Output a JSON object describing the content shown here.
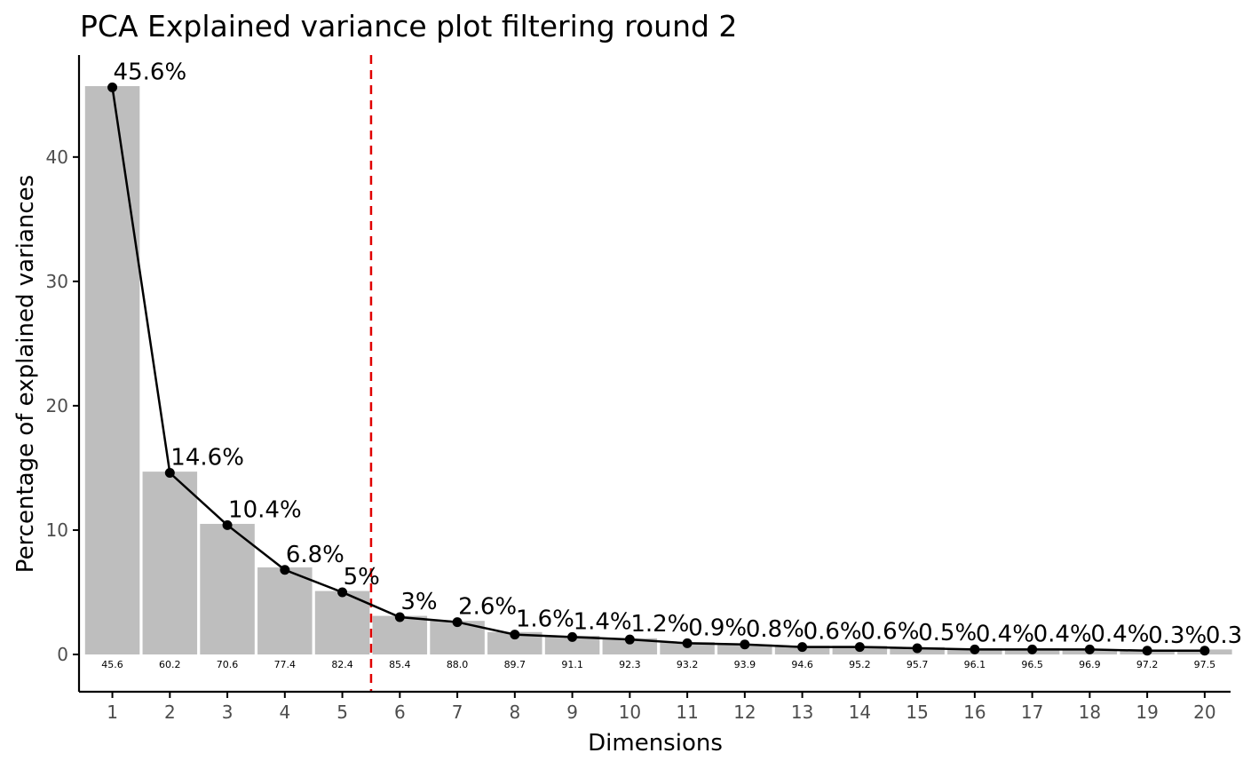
{
  "chart_data": {
    "type": "bar",
    "title": "PCA Explained variance plot filtering round 2",
    "xlabel": "Dimensions",
    "ylabel": "Percentage of explained variances",
    "categories": [
      "1",
      "2",
      "3",
      "4",
      "5",
      "6",
      "7",
      "8",
      "9",
      "10",
      "11",
      "12",
      "13",
      "14",
      "15",
      "16",
      "17",
      "18",
      "19",
      "20"
    ],
    "values": [
      45.6,
      14.6,
      10.4,
      6.8,
      5,
      3,
      2.6,
      1.6,
      1.4,
      1.2,
      0.9,
      0.8,
      0.6,
      0.6,
      0.5,
      0.4,
      0.4,
      0.4,
      0.3,
      0.3
    ],
    "bar_values": [
      45.7,
      14.7,
      10.5,
      7.0,
      5.1,
      3.1,
      2.7,
      1.8,
      1.5,
      1.3,
      1.0,
      0.8,
      0.7,
      0.7,
      0.6,
      0.5,
      0.5,
      0.4,
      0.4,
      0.4
    ],
    "point_labels": [
      "45.6%",
      "14.6%",
      "10.4%",
      "6.8%",
      "5%",
      "3%",
      "2.6%",
      "1.6%",
      "1.4%",
      "1.2%",
      "0.9%",
      "0.8%",
      "0.6%",
      "0.6%",
      "0.5%",
      "0.4%",
      "0.4%",
      "0.4%",
      "0.3%",
      "0.3"
    ],
    "cumulative_labels": [
      "45.6",
      "60.2",
      "70.6",
      "77.4",
      "82.4",
      "85.4",
      "88.0",
      "89.7",
      "91.1",
      "92.3",
      "93.2",
      "93.9",
      "94.6",
      "95.2",
      "95.7",
      "96.1",
      "96.5",
      "96.9",
      "97.2",
      "97.5"
    ],
    "y_ticks": [
      0,
      10,
      20,
      30,
      40
    ],
    "ylim": [
      -3,
      48.2
    ],
    "xlim": [
      0.42,
      20.45
    ],
    "cutoff_x": 5.5,
    "grid": false,
    "colors": {
      "bar": "#bebebe",
      "line": "#000000",
      "point": "#000000",
      "cutoff": "#e00000",
      "axis": "#000000",
      "tick_text": "#4d4d4d"
    }
  }
}
